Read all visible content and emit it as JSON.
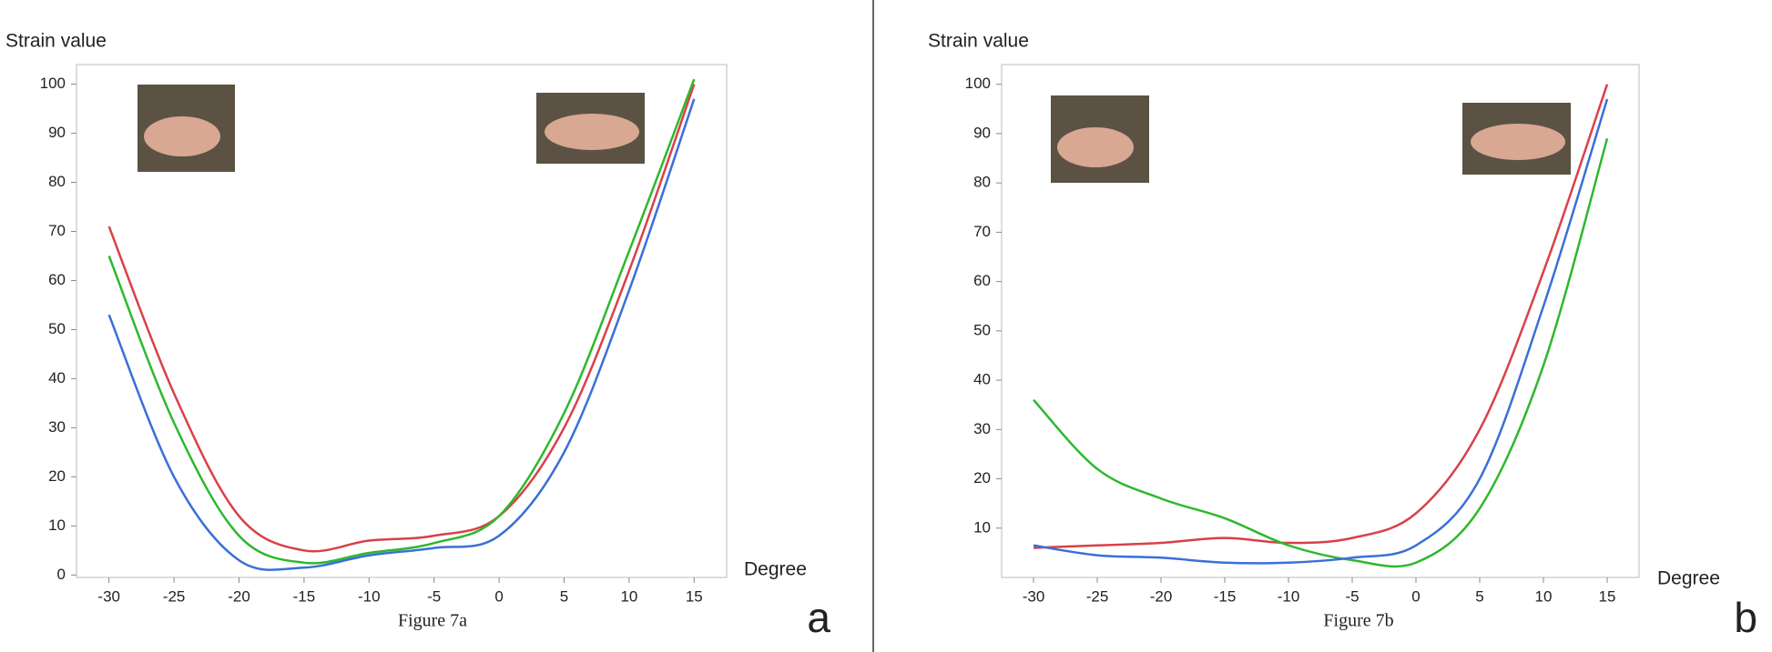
{
  "chart_data": [
    {
      "type": "line",
      "y_label": "Strain value",
      "x_label": "Degree",
      "caption": "Figure 7a",
      "panel_label": "a",
      "x": [
        -30,
        -25,
        -20,
        -15,
        -10,
        -5,
        0,
        5,
        10,
        15
      ],
      "series": [
        {
          "color": "#d9404a",
          "values": [
            71,
            37,
            12,
            5,
            7,
            8,
            12,
            30,
            62,
            100
          ]
        },
        {
          "color": "#2db82d",
          "values": [
            65,
            31,
            8,
            2.5,
            4.5,
            6.5,
            12,
            33,
            66,
            101
          ]
        },
        {
          "color": "#3a6fd8",
          "values": [
            53,
            20,
            3,
            1.5,
            4,
            5.5,
            8,
            25,
            58,
            97
          ]
        }
      ],
      "xlim": [
        -32.5,
        17.5
      ],
      "ylim": [
        -0.5,
        104
      ],
      "xticks": [
        -30,
        -25,
        -20,
        -15,
        -10,
        -5,
        0,
        5,
        10,
        15
      ],
      "yticks": [
        0,
        10,
        20,
        30,
        40,
        50,
        60,
        70,
        80,
        90,
        100
      ]
    },
    {
      "type": "line",
      "y_label": "Strain value",
      "x_label": "Degree",
      "caption": "Figure 7b",
      "panel_label": "b",
      "x": [
        -30,
        -25,
        -20,
        -15,
        -10,
        -5,
        0,
        5,
        10,
        15
      ],
      "series": [
        {
          "color": "#d9404a",
          "values": [
            6,
            6.5,
            7,
            8,
            7,
            8,
            13,
            30,
            62,
            100
          ]
        },
        {
          "color": "#2db82d",
          "values": [
            36,
            22,
            16,
            12,
            6.5,
            3.5,
            3,
            14,
            43,
            89
          ]
        },
        {
          "color": "#3a6fd8",
          "values": [
            6.5,
            4.5,
            4,
            3,
            3,
            4,
            6.5,
            20,
            55,
            97
          ]
        }
      ],
      "xlim": [
        -32.5,
        17.5
      ],
      "ylim": [
        0,
        104
      ],
      "xticks": [
        -30,
        -25,
        -20,
        -15,
        -10,
        -5,
        0,
        5,
        10,
        15
      ],
      "yticks": [
        10,
        20,
        30,
        40,
        50,
        60,
        70,
        80,
        90,
        100
      ]
    }
  ]
}
